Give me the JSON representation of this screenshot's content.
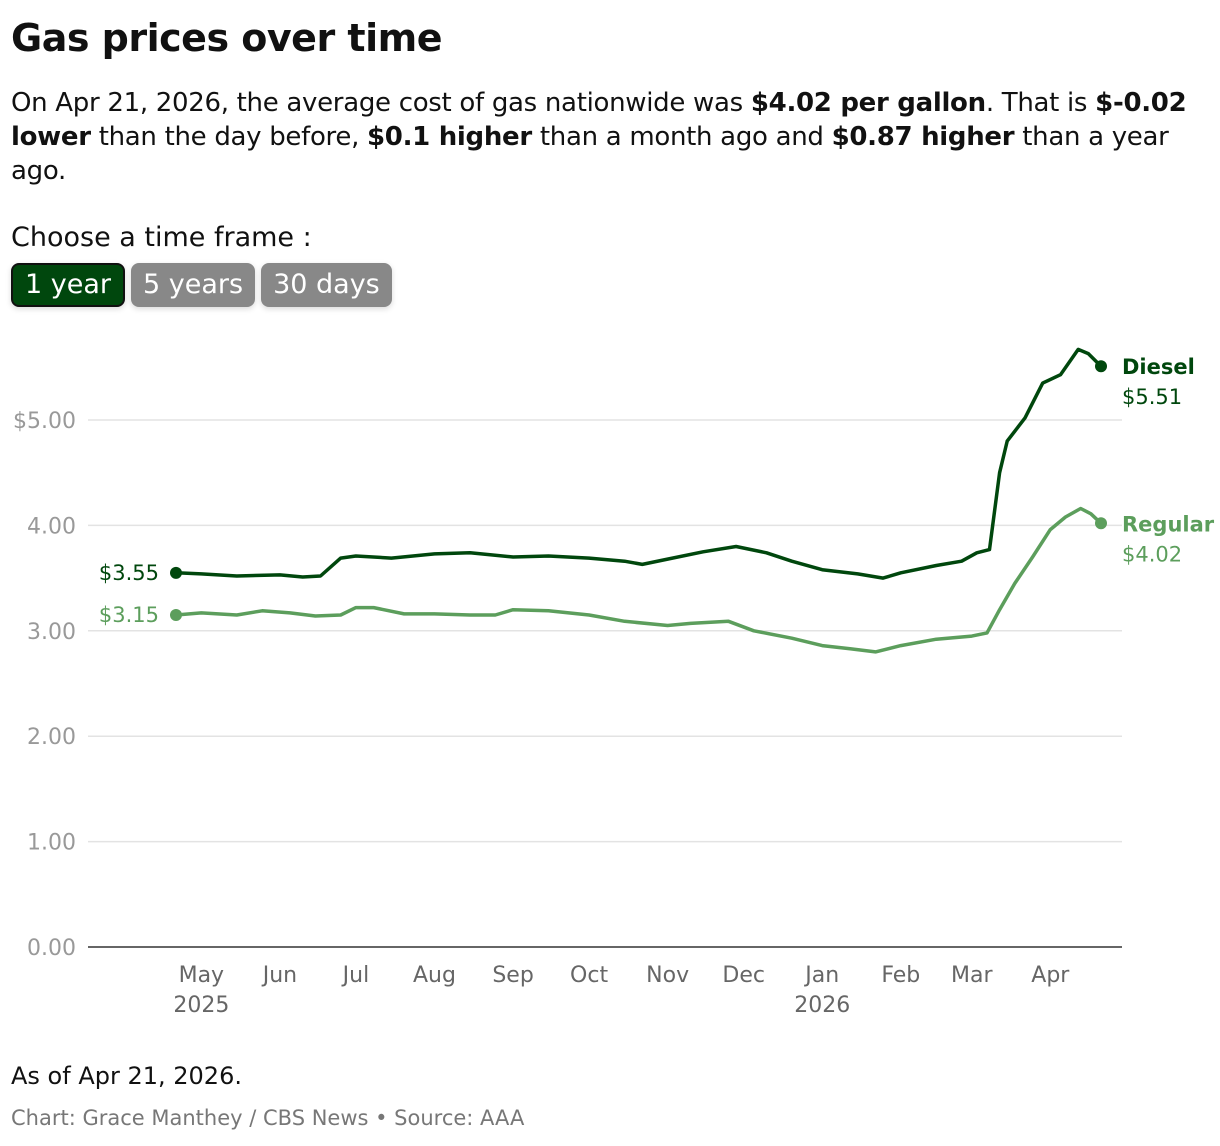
{
  "header": {
    "title": "Gas prices over time",
    "intro": [
      {
        "t": "On Apr 21, 2026, the average cost of gas nationwide was ",
        "b": false
      },
      {
        "t": "$4.02 per gallon",
        "b": true
      },
      {
        "t": ". That is ",
        "b": false
      },
      {
        "t": "$-0.02 lower",
        "b": true
      },
      {
        "t": " than the day before, ",
        "b": false
      },
      {
        "t": "$0.1 higher",
        "b": true
      },
      {
        "t": " than a month ago and ",
        "b": false
      },
      {
        "t": "$0.87 higher",
        "b": true
      },
      {
        "t": " than a year ago.",
        "b": false
      }
    ]
  },
  "controls": {
    "label": "Choose a time frame :",
    "buttons": [
      {
        "label": "1 year",
        "active": true
      },
      {
        "label": "5 years",
        "active": false
      },
      {
        "label": "30 days",
        "active": false
      }
    ]
  },
  "chart_data": {
    "type": "line",
    "ylim": [
      0,
      5.7
    ],
    "yticks": [
      0,
      1,
      2,
      3,
      4,
      5
    ],
    "ytick_labels": [
      "0.00",
      "1.00",
      "2.00",
      "3.00",
      "4.00",
      "$5.00"
    ],
    "xlim": [
      "2025-04-21",
      "2026-04-21"
    ],
    "xticks": [
      {
        "date": "2025-05-01",
        "label": "May",
        "sub": "2025"
      },
      {
        "date": "2025-06-01",
        "label": "Jun"
      },
      {
        "date": "2025-07-01",
        "label": "Jul"
      },
      {
        "date": "2025-08-01",
        "label": "Aug"
      },
      {
        "date": "2025-09-01",
        "label": "Sep"
      },
      {
        "date": "2025-10-01",
        "label": "Oct"
      },
      {
        "date": "2025-11-01",
        "label": "Nov"
      },
      {
        "date": "2025-12-01",
        "label": "Dec"
      },
      {
        "date": "2026-01-01",
        "label": "Jan",
        "sub": "2026"
      },
      {
        "date": "2026-02-01",
        "label": "Feb"
      },
      {
        "date": "2026-03-01",
        "label": "Mar"
      },
      {
        "date": "2026-04-01",
        "label": "Apr"
      }
    ],
    "grid": true,
    "series": [
      {
        "name": "Diesel",
        "color": "#00470d",
        "start_label": "$3.55",
        "end_label": "$5.51",
        "points": [
          [
            "2025-04-21",
            3.55
          ],
          [
            "2025-05-01",
            3.54
          ],
          [
            "2025-05-15",
            3.52
          ],
          [
            "2025-06-01",
            3.53
          ],
          [
            "2025-06-10",
            3.51
          ],
          [
            "2025-06-17",
            3.52
          ],
          [
            "2025-06-25",
            3.69
          ],
          [
            "2025-07-01",
            3.71
          ],
          [
            "2025-07-15",
            3.69
          ],
          [
            "2025-08-01",
            3.73
          ],
          [
            "2025-08-15",
            3.74
          ],
          [
            "2025-09-01",
            3.7
          ],
          [
            "2025-09-15",
            3.71
          ],
          [
            "2025-10-01",
            3.69
          ],
          [
            "2025-10-15",
            3.66
          ],
          [
            "2025-10-22",
            3.63
          ],
          [
            "2025-11-01",
            3.68
          ],
          [
            "2025-11-15",
            3.75
          ],
          [
            "2025-11-28",
            3.8
          ],
          [
            "2025-12-10",
            3.74
          ],
          [
            "2025-12-20",
            3.66
          ],
          [
            "2026-01-01",
            3.58
          ],
          [
            "2026-01-15",
            3.54
          ],
          [
            "2026-01-25",
            3.5
          ],
          [
            "2026-02-01",
            3.55
          ],
          [
            "2026-02-15",
            3.62
          ],
          [
            "2026-02-25",
            3.66
          ],
          [
            "2026-03-03",
            3.74
          ],
          [
            "2026-03-08",
            3.77
          ],
          [
            "2026-03-12",
            4.5
          ],
          [
            "2026-03-15",
            4.8
          ],
          [
            "2026-03-22",
            5.02
          ],
          [
            "2026-03-29",
            5.35
          ],
          [
            "2026-04-05",
            5.43
          ],
          [
            "2026-04-12",
            5.67
          ],
          [
            "2026-04-16",
            5.63
          ],
          [
            "2026-04-21",
            5.51
          ]
        ]
      },
      {
        "name": "Regular",
        "color": "#5c9e5c",
        "start_label": "$3.15",
        "end_label": "$4.02",
        "points": [
          [
            "2025-04-21",
            3.15
          ],
          [
            "2025-05-01",
            3.17
          ],
          [
            "2025-05-15",
            3.15
          ],
          [
            "2025-05-25",
            3.19
          ],
          [
            "2025-06-05",
            3.17
          ],
          [
            "2025-06-15",
            3.14
          ],
          [
            "2025-06-25",
            3.15
          ],
          [
            "2025-07-01",
            3.22
          ],
          [
            "2025-07-08",
            3.22
          ],
          [
            "2025-07-20",
            3.16
          ],
          [
            "2025-08-01",
            3.16
          ],
          [
            "2025-08-15",
            3.15
          ],
          [
            "2025-08-25",
            3.15
          ],
          [
            "2025-09-01",
            3.2
          ],
          [
            "2025-09-15",
            3.19
          ],
          [
            "2025-10-01",
            3.15
          ],
          [
            "2025-10-15",
            3.09
          ],
          [
            "2025-11-01",
            3.05
          ],
          [
            "2025-11-10",
            3.07
          ],
          [
            "2025-11-25",
            3.09
          ],
          [
            "2025-12-05",
            3.0
          ],
          [
            "2025-12-20",
            2.93
          ],
          [
            "2026-01-01",
            2.86
          ],
          [
            "2026-01-12",
            2.83
          ],
          [
            "2026-01-22",
            2.8
          ],
          [
            "2026-02-01",
            2.86
          ],
          [
            "2026-02-15",
            2.92
          ],
          [
            "2026-03-01",
            2.95
          ],
          [
            "2026-03-07",
            2.98
          ],
          [
            "2026-03-12",
            3.2
          ],
          [
            "2026-03-18",
            3.45
          ],
          [
            "2026-03-25",
            3.7
          ],
          [
            "2026-04-01",
            3.96
          ],
          [
            "2026-04-07",
            4.08
          ],
          [
            "2026-04-13",
            4.16
          ],
          [
            "2026-04-17",
            4.11
          ],
          [
            "2026-04-21",
            4.02
          ]
        ]
      }
    ]
  },
  "footer": {
    "note": "As of Apr 21, 2026.",
    "credit": "Chart: Grace Manthey / CBS News • Source: AAA"
  }
}
